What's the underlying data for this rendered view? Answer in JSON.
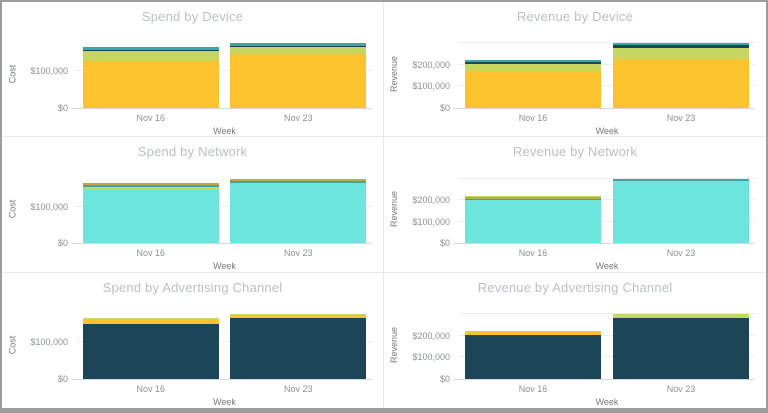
{
  "window": {
    "background": "#ffffff",
    "frame_color": "#9d9d9d",
    "panel_divider_color": "#e7eaec",
    "grid_layout": {
      "columns": 2,
      "rows": 3
    }
  },
  "text_colors": {
    "chart_title": "#b9bfc4",
    "tick_label": "#8b9094",
    "axis_title": "#75797d"
  },
  "palette": {
    "yellow": "#FCC32F",
    "yellow_green": "#C6D65E",
    "dark_navy": "#1C4557",
    "teal": "#3BA8A0",
    "cyan": "#6CE6DC",
    "gold": "#C2A845"
  },
  "chart_data": [
    {
      "type": "bar",
      "stacked": true,
      "title": "Spend by Device",
      "xlabel": "Week",
      "ylabel": "Cost",
      "categories": [
        "Nov 16",
        "Nov 23"
      ],
      "ylim": [
        0,
        185000
      ],
      "yticks": [
        {
          "value": 0,
          "label": "$0"
        },
        {
          "value": 100000,
          "label": "$100,000"
        }
      ],
      "grid": true,
      "legend": "none",
      "series": [
        {
          "name": "yellow",
          "color": "#FCC32F",
          "values": [
            129000,
            148000
          ]
        },
        {
          "name": "yellow-green",
          "color": "#C6D65E",
          "values": [
            26000,
            18000
          ]
        },
        {
          "name": "dark-navy",
          "color": "#1C4557",
          "values": [
            4000,
            4000
          ]
        },
        {
          "name": "teal",
          "color": "#3BA8A0",
          "values": [
            6000,
            6000
          ]
        }
      ]
    },
    {
      "type": "bar",
      "stacked": true,
      "title": "Revenue by Device",
      "xlabel": "Week",
      "ylabel": "Revenue",
      "categories": [
        "Nov 16",
        "Nov 23"
      ],
      "ylim": [
        0,
        316000
      ],
      "yticks": [
        {
          "value": 0,
          "label": "$0"
        },
        {
          "value": 100000,
          "label": "$100,000"
        },
        {
          "value": 200000,
          "label": "$200,000"
        },
        {
          "value": 300000,
          "label": ""
        }
      ],
      "grid": true,
      "legend": "none",
      "series": [
        {
          "name": "yellow",
          "color": "#FCC32F",
          "values": [
            170000,
            228000
          ]
        },
        {
          "name": "yellow-green",
          "color": "#C6D65E",
          "values": [
            36000,
            52000
          ]
        },
        {
          "name": "dark-navy",
          "color": "#1C4557",
          "values": [
            9000,
            11000
          ]
        },
        {
          "name": "teal",
          "color": "#3BA8A0",
          "values": [
            8000,
            10000
          ]
        }
      ]
    },
    {
      "type": "bar",
      "stacked": true,
      "title": "Spend by Network",
      "xlabel": "Week",
      "ylabel": "Cost",
      "categories": [
        "Nov 16",
        "Nov 23"
      ],
      "ylim": [
        0,
        185000
      ],
      "yticks": [
        {
          "value": 0,
          "label": "$0"
        },
        {
          "value": 100000,
          "label": "$100,000"
        }
      ],
      "grid": true,
      "legend": "none",
      "series": [
        {
          "name": "cyan",
          "color": "#6CE6DC",
          "values": [
            149000,
            165000
          ]
        },
        {
          "name": "yellow-green",
          "color": "#C6D65E",
          "values": [
            3000,
            0
          ]
        },
        {
          "name": "teal",
          "color": "#3BA8A0",
          "values": [
            6000,
            4000
          ]
        },
        {
          "name": "gold",
          "color": "#C2A845",
          "values": [
            7000,
            7000
          ]
        }
      ]
    },
    {
      "type": "bar",
      "stacked": true,
      "title": "Revenue by Network",
      "xlabel": "Week",
      "ylabel": "Revenue",
      "categories": [
        "Nov 16",
        "Nov 23"
      ],
      "ylim": [
        0,
        316000
      ],
      "yticks": [
        {
          "value": 0,
          "label": "$0"
        },
        {
          "value": 100000,
          "label": "$100,000"
        },
        {
          "value": 200000,
          "label": "$200,000"
        },
        {
          "value": 300000,
          "label": ""
        }
      ],
      "grid": true,
      "legend": "none",
      "series": [
        {
          "name": "cyan",
          "color": "#6CE6DC",
          "values": [
            202000,
            292000
          ]
        },
        {
          "name": "teal",
          "color": "#3BA8A0",
          "values": [
            5000,
            9000
          ]
        },
        {
          "name": "gold",
          "color": "#C2A845",
          "values": [
            9000,
            0
          ]
        },
        {
          "name": "yellow-green",
          "color": "#C6D65E",
          "values": [
            6000,
            0
          ]
        }
      ]
    },
    {
      "type": "bar",
      "stacked": true,
      "title": "Spend by Advertising Channel",
      "xlabel": "Week",
      "ylabel": "Cost",
      "categories": [
        "Nov 16",
        "Nov 23"
      ],
      "ylim": [
        0,
        185000
      ],
      "yticks": [
        {
          "value": 0,
          "label": "$0"
        },
        {
          "value": 100000,
          "label": "$100,000"
        }
      ],
      "grid": true,
      "legend": "none",
      "series": [
        {
          "name": "dark-navy",
          "color": "#1C4557",
          "values": [
            150000,
            164000
          ]
        },
        {
          "name": "yellow",
          "color": "#FCC32F",
          "values": [
            11000,
            7000
          ]
        },
        {
          "name": "yellow-green",
          "color": "#C6D65E",
          "values": [
            4000,
            5000
          ]
        }
      ]
    },
    {
      "type": "bar",
      "stacked": true,
      "title": "Revenue by Advertising Channel",
      "xlabel": "Week",
      "ylabel": "Revenue",
      "categories": [
        "Nov 16",
        "Nov 23"
      ],
      "ylim": [
        0,
        316000
      ],
      "yticks": [
        {
          "value": 0,
          "label": "$0"
        },
        {
          "value": 100000,
          "label": "$100,000"
        },
        {
          "value": 200000,
          "label": "$200,000"
        },
        {
          "value": 300000,
          "label": ""
        }
      ],
      "grid": true,
      "legend": "none",
      "series": [
        {
          "name": "dark-navy",
          "color": "#1C4557",
          "values": [
            201000,
            283000
          ]
        },
        {
          "name": "yellow",
          "color": "#FCC32F",
          "values": [
            16000,
            4000
          ]
        },
        {
          "name": "yellow-green",
          "color": "#C6D65E",
          "values": [
            5000,
            14000
          ]
        }
      ]
    }
  ]
}
